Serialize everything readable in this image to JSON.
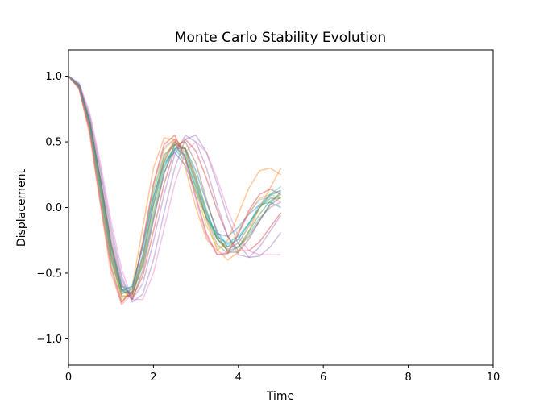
{
  "chart_data": {
    "type": "line",
    "title": "Monte Carlo Stability Evolution",
    "xlabel": "Time",
    "ylabel": "Displacement",
    "xlim": [
      0,
      10
    ],
    "ylim": [
      -1.2,
      1.2
    ],
    "xticks": [
      0,
      2,
      4,
      6,
      8,
      10
    ],
    "xtick_labels": [
      "0",
      "2",
      "4",
      "6",
      "8",
      "10"
    ],
    "yticks": [
      -1.0,
      -0.5,
      0.0,
      0.5,
      1.0
    ],
    "ytick_labels": [
      "−1.0",
      "−0.5",
      "0.0",
      "0.5",
      "1.0"
    ],
    "grid": false,
    "legend": "none",
    "line_opacity": 0.4,
    "series": [
      {
        "color": "#1f77b4",
        "x": [
          0,
          0.25,
          0.5,
          0.75,
          1.0,
          1.25,
          1.5,
          1.75,
          2.0,
          2.25,
          2.5,
          2.75,
          3.0,
          3.25,
          3.5,
          3.75,
          4.0,
          4.25,
          4.5,
          4.75,
          5.0
        ],
        "y": [
          1.0,
          0.92,
          0.62,
          0.15,
          -0.35,
          -0.63,
          -0.6,
          -0.3,
          0.08,
          0.34,
          0.42,
          0.32,
          0.12,
          -0.08,
          -0.2,
          -0.22,
          -0.15,
          -0.05,
          0.02,
          0.04,
          0.0
        ]
      },
      {
        "color": "#ff7f0e",
        "x": [
          0,
          0.25,
          0.5,
          0.75,
          1.0,
          1.25,
          1.5,
          1.75,
          2.0,
          2.25,
          2.5,
          2.75,
          3.0,
          3.25,
          3.5,
          3.75,
          4.0,
          4.25,
          4.5,
          4.75,
          5.0
        ],
        "y": [
          1.0,
          0.9,
          0.55,
          0.02,
          -0.5,
          -0.73,
          -0.6,
          -0.15,
          0.3,
          0.53,
          0.52,
          0.3,
          0.0,
          -0.24,
          -0.33,
          -0.25,
          -0.05,
          0.15,
          0.28,
          0.3,
          0.25
        ]
      },
      {
        "color": "#2ca02c",
        "x": [
          0,
          0.25,
          0.5,
          0.75,
          1.0,
          1.25,
          1.5,
          1.75,
          2.0,
          2.25,
          2.5,
          2.75,
          3.0,
          3.25,
          3.5,
          3.75,
          4.0,
          4.25,
          4.5,
          4.75,
          5.0
        ],
        "y": [
          1.0,
          0.91,
          0.6,
          0.1,
          -0.4,
          -0.66,
          -0.62,
          -0.28,
          0.12,
          0.4,
          0.48,
          0.38,
          0.15,
          -0.08,
          -0.24,
          -0.3,
          -0.24,
          -0.12,
          0.0,
          0.07,
          0.07
        ]
      },
      {
        "color": "#d62728",
        "x": [
          0,
          0.25,
          0.5,
          0.75,
          1.0,
          1.25,
          1.5,
          1.75,
          2.0,
          2.25,
          2.5,
          2.75,
          3.0,
          3.25,
          3.5,
          3.75,
          4.0,
          4.25,
          4.5,
          4.75,
          5.0
        ],
        "y": [
          1.0,
          0.93,
          0.66,
          0.22,
          -0.25,
          -0.58,
          -0.69,
          -0.52,
          -0.18,
          0.18,
          0.44,
          0.52,
          0.43,
          0.22,
          -0.02,
          -0.22,
          -0.33,
          -0.33,
          -0.26,
          -0.15,
          -0.04
        ]
      },
      {
        "color": "#9467bd",
        "x": [
          0,
          0.25,
          0.5,
          0.75,
          1.0,
          1.25,
          1.5,
          1.75,
          2.0,
          2.25,
          2.5,
          2.75,
          3.0,
          3.25,
          3.5,
          3.75,
          4.0,
          4.25,
          4.5,
          4.75,
          5.0
        ],
        "y": [
          1.0,
          0.94,
          0.7,
          0.3,
          -0.15,
          -0.52,
          -0.72,
          -0.66,
          -0.4,
          -0.04,
          0.3,
          0.52,
          0.55,
          0.42,
          0.18,
          -0.08,
          -0.28,
          -0.38,
          -0.37,
          -0.3,
          -0.19
        ]
      },
      {
        "color": "#8c564b",
        "x": [
          0,
          0.25,
          0.5,
          0.75,
          1.0,
          1.25,
          1.5,
          1.75,
          2.0,
          2.25,
          2.5,
          2.75,
          3.0,
          3.25,
          3.5,
          3.75,
          4.0,
          4.25,
          4.5,
          4.75,
          5.0
        ],
        "y": [
          1.0,
          0.92,
          0.63,
          0.17,
          -0.33,
          -0.64,
          -0.65,
          -0.38,
          0.02,
          0.35,
          0.5,
          0.44,
          0.22,
          -0.04,
          -0.24,
          -0.32,
          -0.27,
          -0.14,
          0.0,
          0.1,
          0.13
        ]
      },
      {
        "color": "#e377c2",
        "x": [
          0,
          0.25,
          0.5,
          0.75,
          1.0,
          1.25,
          1.5,
          1.75,
          2.0,
          2.25,
          2.5,
          2.75,
          3.0,
          3.25,
          3.5,
          3.75,
          4.0,
          4.25,
          4.5,
          4.75,
          5.0
        ],
        "y": [
          1.0,
          0.95,
          0.72,
          0.34,
          -0.1,
          -0.47,
          -0.7,
          -0.7,
          -0.5,
          -0.16,
          0.18,
          0.42,
          0.5,
          0.42,
          0.22,
          -0.02,
          -0.22,
          -0.33,
          -0.36,
          -0.36,
          -0.36
        ]
      },
      {
        "color": "#7f7f7f",
        "x": [
          0,
          0.25,
          0.5,
          0.75,
          1.0,
          1.25,
          1.5,
          1.75,
          2.0,
          2.25,
          2.5,
          2.75,
          3.0,
          3.25,
          3.5,
          3.75,
          4.0,
          4.25,
          4.5,
          4.75,
          5.0
        ],
        "y": [
          1.0,
          0.92,
          0.62,
          0.13,
          -0.38,
          -0.68,
          -0.67,
          -0.36,
          0.06,
          0.38,
          0.5,
          0.42,
          0.18,
          -0.08,
          -0.28,
          -0.35,
          -0.3,
          -0.2,
          -0.08,
          0.0,
          0.04
        ]
      },
      {
        "color": "#bcbd22",
        "x": [
          0,
          0.25,
          0.5,
          0.75,
          1.0,
          1.25,
          1.5,
          1.75,
          2.0,
          2.25,
          2.5,
          2.75,
          3.0,
          3.25,
          3.5,
          3.75,
          4.0,
          4.25,
          4.5,
          4.75,
          5.0
        ],
        "y": [
          1.0,
          0.91,
          0.6,
          0.08,
          -0.42,
          -0.7,
          -0.64,
          -0.28,
          0.15,
          0.44,
          0.52,
          0.38,
          0.12,
          -0.14,
          -0.3,
          -0.3,
          -0.18,
          -0.04,
          0.07,
          0.1,
          0.07
        ]
      },
      {
        "color": "#17becf",
        "x": [
          0,
          0.25,
          0.5,
          0.75,
          1.0,
          1.25,
          1.5,
          1.75,
          2.0,
          2.25,
          2.5,
          2.75,
          3.0,
          3.25,
          3.5,
          3.75,
          4.0,
          4.25,
          4.5,
          4.75,
          5.0
        ],
        "y": [
          1.0,
          0.92,
          0.61,
          0.12,
          -0.38,
          -0.64,
          -0.6,
          -0.3,
          0.08,
          0.35,
          0.44,
          0.36,
          0.16,
          -0.06,
          -0.22,
          -0.27,
          -0.22,
          -0.12,
          0.0,
          0.09,
          0.13
        ]
      },
      {
        "color": "#1f77b4",
        "x": [
          0,
          0.25,
          0.5,
          0.75,
          1.0,
          1.25,
          1.5,
          1.75,
          2.0,
          2.25,
          2.5,
          2.75,
          3.0,
          3.25,
          3.5,
          3.75,
          4.0,
          4.25,
          4.5,
          4.75,
          5.0
        ],
        "y": [
          1.0,
          0.93,
          0.65,
          0.2,
          -0.28,
          -0.6,
          -0.66,
          -0.44,
          -0.08,
          0.26,
          0.45,
          0.45,
          0.28,
          0.04,
          -0.18,
          -0.3,
          -0.3,
          -0.22,
          -0.1,
          0.03,
          0.12
        ]
      },
      {
        "color": "#ff7f0e",
        "x": [
          0,
          0.25,
          0.5,
          0.75,
          1.0,
          1.25,
          1.5,
          1.75,
          2.0,
          2.25,
          2.5,
          2.75,
          3.0,
          3.25,
          3.5,
          3.75,
          4.0,
          4.25,
          4.5,
          4.75,
          5.0
        ],
        "y": [
          1.0,
          0.92,
          0.63,
          0.16,
          -0.35,
          -0.67,
          -0.68,
          -0.4,
          0.02,
          0.36,
          0.52,
          0.45,
          0.2,
          -0.1,
          -0.32,
          -0.4,
          -0.34,
          -0.18,
          0.0,
          0.15,
          0.3
        ]
      },
      {
        "color": "#2ca02c",
        "x": [
          0,
          0.25,
          0.5,
          0.75,
          1.0,
          1.25,
          1.5,
          1.75,
          2.0,
          2.25,
          2.5,
          2.75,
          3.0,
          3.25,
          3.5,
          3.75,
          4.0,
          4.25,
          4.5,
          4.75,
          5.0
        ],
        "y": [
          1.0,
          0.93,
          0.65,
          0.2,
          -0.3,
          -0.62,
          -0.66,
          -0.42,
          -0.04,
          0.3,
          0.48,
          0.45,
          0.24,
          -0.02,
          -0.24,
          -0.33,
          -0.3,
          -0.18,
          -0.05,
          0.05,
          0.1
        ]
      },
      {
        "color": "#d62728",
        "x": [
          0,
          0.25,
          0.5,
          0.75,
          1.0,
          1.25,
          1.5,
          1.75,
          2.0,
          2.25,
          2.5,
          2.75,
          3.0,
          3.25,
          3.5,
          3.75,
          4.0,
          4.25,
          4.5,
          4.75,
          5.0
        ],
        "y": [
          1.0,
          0.91,
          0.58,
          0.05,
          -0.45,
          -0.72,
          -0.64,
          -0.26,
          0.18,
          0.48,
          0.55,
          0.38,
          0.08,
          -0.2,
          -0.36,
          -0.35,
          -0.2,
          -0.02,
          0.1,
          0.14,
          0.1
        ]
      },
      {
        "color": "#9467bd",
        "x": [
          0,
          0.25,
          0.5,
          0.75,
          1.0,
          1.25,
          1.5,
          1.75,
          2.0,
          2.25,
          2.5,
          2.75,
          3.0,
          3.25,
          3.5,
          3.75,
          4.0,
          4.25,
          4.5,
          4.75,
          5.0
        ],
        "y": [
          1.0,
          0.94,
          0.68,
          0.27,
          -0.2,
          -0.55,
          -0.7,
          -0.58,
          -0.26,
          0.1,
          0.4,
          0.55,
          0.5,
          0.3,
          0.02,
          -0.22,
          -0.36,
          -0.38,
          -0.3,
          -0.18,
          -0.06
        ]
      },
      {
        "color": "#8c564b",
        "x": [
          0,
          0.25,
          0.5,
          0.75,
          1.0,
          1.25,
          1.5,
          1.75,
          2.0,
          2.25,
          2.5,
          2.75,
          3.0,
          3.25,
          3.5,
          3.75,
          4.0,
          4.25,
          4.5,
          4.75,
          5.0
        ],
        "y": [
          1.0,
          0.93,
          0.65,
          0.22,
          -0.28,
          -0.62,
          -0.7,
          -0.48,
          -0.1,
          0.26,
          0.48,
          0.5,
          0.34,
          0.06,
          -0.2,
          -0.34,
          -0.34,
          -0.24,
          -0.1,
          0.02,
          0.08
        ]
      },
      {
        "color": "#e377c2",
        "x": [
          0,
          0.25,
          0.5,
          0.75,
          1.0,
          1.25,
          1.5,
          1.75,
          2.0,
          2.25,
          2.5,
          2.75,
          3.0,
          3.25,
          3.5,
          3.75,
          4.0,
          4.25,
          4.5,
          4.75,
          5.0
        ],
        "y": [
          1.0,
          0.91,
          0.58,
          0.04,
          -0.46,
          -0.74,
          -0.66,
          -0.28,
          0.18,
          0.46,
          0.52,
          0.36,
          0.06,
          -0.22,
          -0.36,
          -0.34,
          -0.2,
          -0.04,
          0.06,
          0.08,
          0.04
        ]
      },
      {
        "color": "#17becf",
        "x": [
          0,
          0.25,
          0.5,
          0.75,
          1.0,
          1.25,
          1.5,
          1.75,
          2.0,
          2.25,
          2.5,
          2.75,
          3.0,
          3.25,
          3.5,
          3.75,
          4.0,
          4.25,
          4.5,
          4.75,
          5.0
        ],
        "y": [
          1.0,
          0.93,
          0.64,
          0.18,
          -0.3,
          -0.6,
          -0.62,
          -0.36,
          0.02,
          0.32,
          0.45,
          0.4,
          0.2,
          -0.04,
          -0.22,
          -0.28,
          -0.24,
          -0.12,
          0.02,
          0.1,
          0.16
        ]
      }
    ]
  }
}
